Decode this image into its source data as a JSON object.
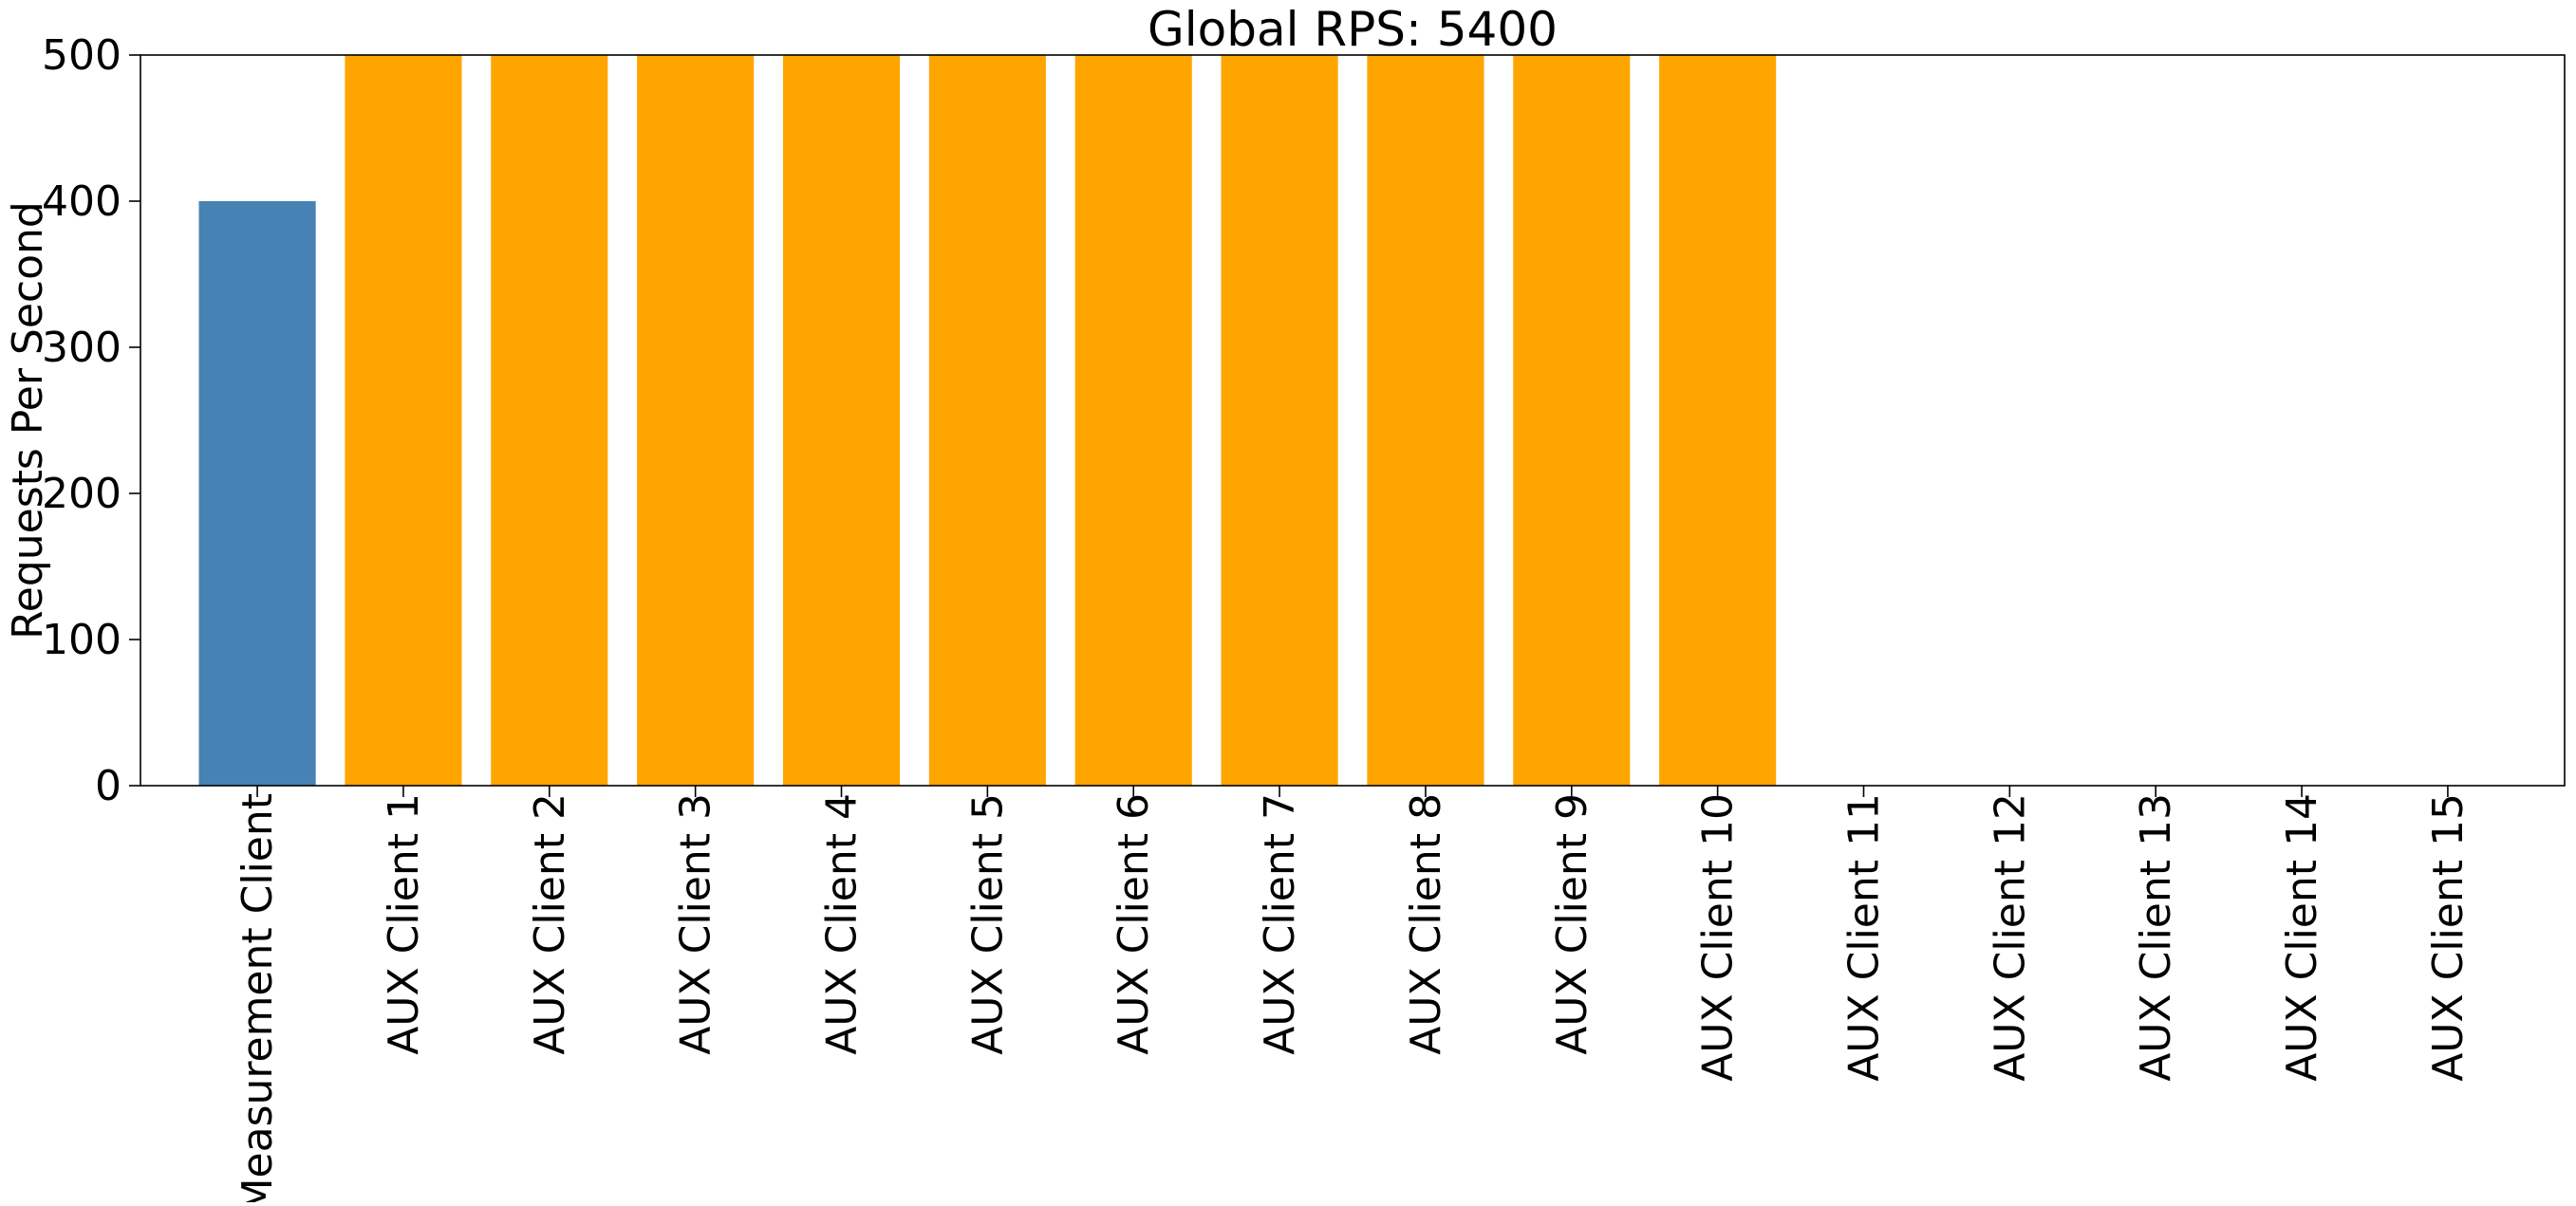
{
  "chart_data": {
    "type": "bar",
    "title": "Global RPS: 5400",
    "xlabel": "",
    "ylabel": "Requests Per Second",
    "ylim": [
      0,
      500
    ],
    "yticks": [
      0,
      100,
      200,
      300,
      400,
      500
    ],
    "grid": false,
    "legend": "none",
    "categories": [
      "Measurement Client",
      "AUX Client 1",
      "AUX Client 2",
      "AUX Client 3",
      "AUX Client 4",
      "AUX Client 5",
      "AUX Client 6",
      "AUX Client 7",
      "AUX Client 8",
      "AUX Client 9",
      "AUX Client 10",
      "AUX Client 11",
      "AUX Client 12",
      "AUX Client 13",
      "AUX Client 14",
      "AUX Client 15"
    ],
    "values": [
      400,
      500,
      500,
      500,
      500,
      500,
      500,
      500,
      500,
      500,
      500,
      0,
      0,
      0,
      0,
      0
    ],
    "colors": [
      "#4682b4",
      "#ffa500",
      "#ffa500",
      "#ffa500",
      "#ffa500",
      "#ffa500",
      "#ffa500",
      "#ffa500",
      "#ffa500",
      "#ffa500",
      "#ffa500",
      "#ffa500",
      "#ffa500",
      "#ffa500",
      "#ffa500",
      "#ffa500"
    ]
  }
}
